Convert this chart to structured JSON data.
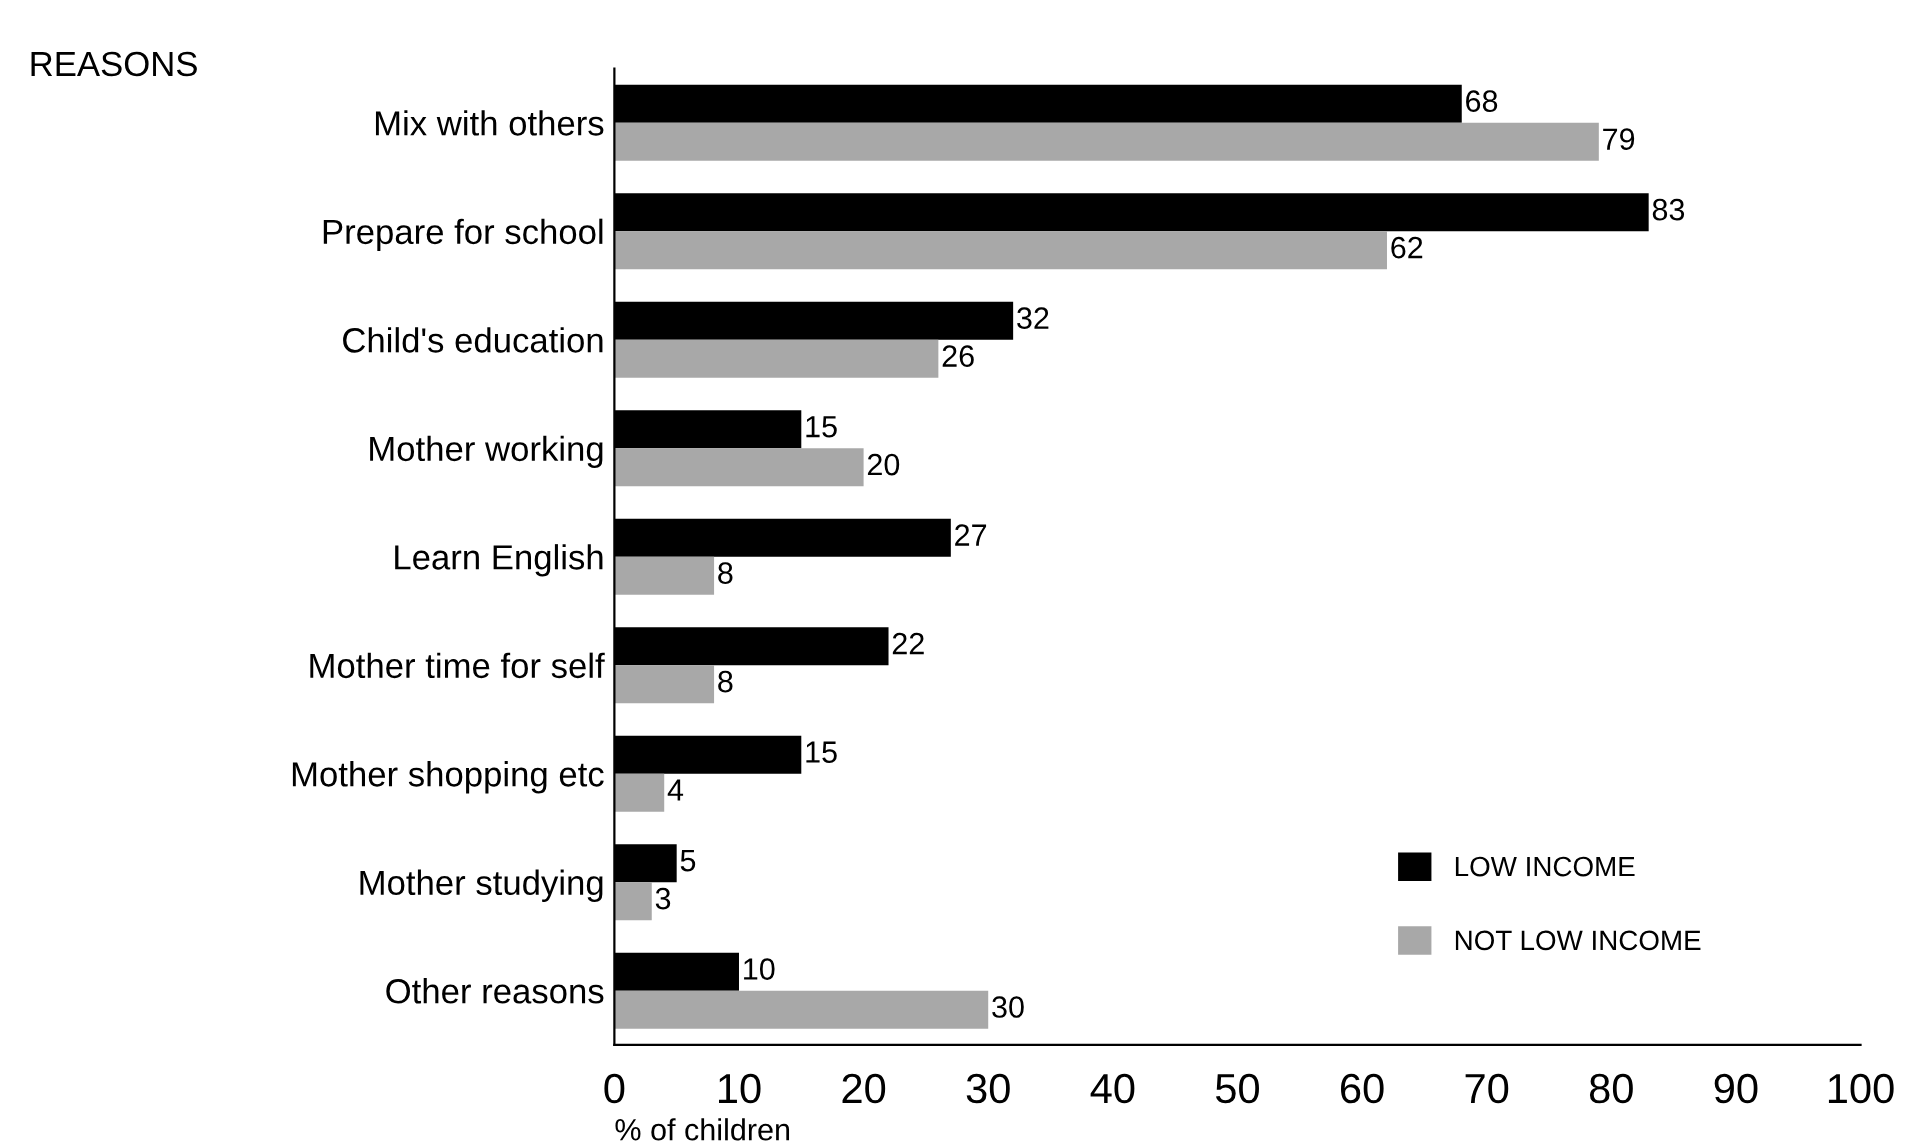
{
  "chart_data": {
    "type": "bar",
    "orientation": "horizontal",
    "ylabel": "REASONS",
    "xlabel": "% of children",
    "categories": [
      "Mix with others",
      "Prepare for school",
      "Child's education",
      "Mother working",
      "Learn English",
      "Mother time for self",
      "Mother shopping etc",
      "Mother studying",
      "Other reasons"
    ],
    "series": [
      {
        "name": "LOW INCOME",
        "color": "#000000",
        "values": [
          68,
          83,
          32,
          15,
          27,
          22,
          15,
          5,
          10
        ]
      },
      {
        "name": "NOT LOW INCOME",
        "color": "#a8a8a8",
        "values": [
          79,
          62,
          26,
          20,
          8,
          8,
          4,
          3,
          30
        ]
      }
    ],
    "xlim": [
      0,
      100
    ],
    "xticks": [
      0,
      10,
      20,
      30,
      40,
      50,
      60,
      70,
      80,
      90,
      100
    ],
    "data_labels": true,
    "legend": "bottom right",
    "grid": false
  }
}
